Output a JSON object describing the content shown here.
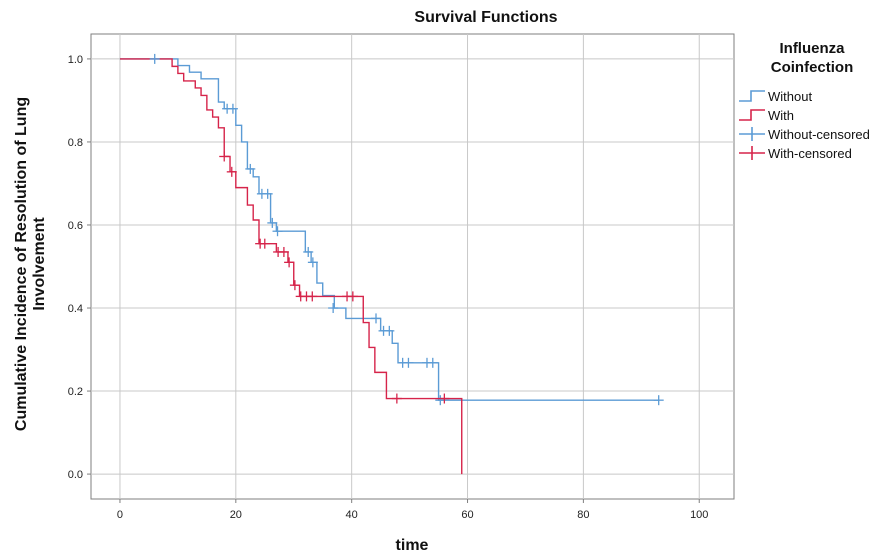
{
  "chart_data": {
    "type": "line",
    "title": "Survival Functions",
    "xlabel": "time",
    "ylabel_lines": [
      "Cumulative Incidence of Resolution of Lung",
      "Involvement"
    ],
    "xlim": [
      -5,
      106
    ],
    "ylim": [
      -0.06,
      1.06
    ],
    "xticks": [
      0,
      20,
      40,
      60,
      80,
      100
    ],
    "yticks": [
      0.0,
      0.2,
      0.4,
      0.6,
      0.8,
      1.0
    ],
    "ytick_labels": [
      "0.0",
      "0.2",
      "0.4",
      "0.6",
      "0.8",
      "1.0"
    ],
    "grid": true,
    "legend": {
      "title_lines": [
        "Influenza",
        "Coinfection"
      ],
      "position": "right",
      "entries": [
        {
          "label": "Without",
          "kind": "line",
          "color": "#5b9bd5"
        },
        {
          "label": "With",
          "kind": "line",
          "color": "#d6244a"
        },
        {
          "label": "Without-censored",
          "kind": "censor",
          "color": "#5b9bd5"
        },
        {
          "label": "With-censored",
          "kind": "censor",
          "color": "#d6244a"
        }
      ]
    },
    "series": [
      {
        "name": "Without",
        "color": "#5b9bd5",
        "step_points": [
          [
            0,
            1.0
          ],
          [
            10,
            1.0
          ],
          [
            10,
            0.984
          ],
          [
            12,
            0.984
          ],
          [
            12,
            0.968
          ],
          [
            14,
            0.968
          ],
          [
            14,
            0.952
          ],
          [
            17,
            0.952
          ],
          [
            17,
            0.896
          ],
          [
            18,
            0.896
          ],
          [
            18,
            0.88
          ],
          [
            20,
            0.88
          ],
          [
            20,
            0.84
          ],
          [
            21,
            0.84
          ],
          [
            21,
            0.8
          ],
          [
            22,
            0.8
          ],
          [
            22,
            0.735
          ],
          [
            23,
            0.735
          ],
          [
            23,
            0.716
          ],
          [
            24,
            0.716
          ],
          [
            24,
            0.675
          ],
          [
            26,
            0.675
          ],
          [
            26,
            0.605
          ],
          [
            27,
            0.605
          ],
          [
            27,
            0.585
          ],
          [
            32,
            0.585
          ],
          [
            32,
            0.535
          ],
          [
            33,
            0.535
          ],
          [
            33,
            0.51
          ],
          [
            34,
            0.51
          ],
          [
            34,
            0.46
          ],
          [
            35,
            0.46
          ],
          [
            35,
            0.43
          ],
          [
            37,
            0.43
          ],
          [
            37,
            0.4
          ],
          [
            39,
            0.4
          ],
          [
            39,
            0.375
          ],
          [
            45,
            0.375
          ],
          [
            45,
            0.345
          ],
          [
            47,
            0.345
          ],
          [
            47,
            0.315
          ],
          [
            48,
            0.315
          ],
          [
            48,
            0.268
          ],
          [
            55,
            0.268
          ],
          [
            55,
            0.178
          ],
          [
            93,
            0.178
          ]
        ],
        "censored": [
          [
            6,
            1.0
          ],
          [
            18.5,
            0.88
          ],
          [
            19.5,
            0.88
          ],
          [
            22.5,
            0.735
          ],
          [
            24.5,
            0.675
          ],
          [
            25.5,
            0.675
          ],
          [
            26.3,
            0.605
          ],
          [
            27.2,
            0.585
          ],
          [
            32.5,
            0.535
          ],
          [
            33.3,
            0.51
          ],
          [
            36.8,
            0.4
          ],
          [
            44.2,
            0.375
          ],
          [
            45.5,
            0.345
          ],
          [
            46.5,
            0.345
          ],
          [
            48.8,
            0.268
          ],
          [
            49.8,
            0.268
          ],
          [
            53,
            0.268
          ],
          [
            54,
            0.268
          ],
          [
            55.3,
            0.178
          ],
          [
            93,
            0.178
          ]
        ]
      },
      {
        "name": "With",
        "color": "#d6244a",
        "step_points": [
          [
            0,
            1.0
          ],
          [
            9,
            1.0
          ],
          [
            9,
            0.982
          ],
          [
            10,
            0.982
          ],
          [
            10,
            0.965
          ],
          [
            11,
            0.965
          ],
          [
            11,
            0.947
          ],
          [
            13,
            0.947
          ],
          [
            13,
            0.93
          ],
          [
            14,
            0.93
          ],
          [
            14,
            0.912
          ],
          [
            15,
            0.912
          ],
          [
            15,
            0.877
          ],
          [
            16,
            0.877
          ],
          [
            16,
            0.86
          ],
          [
            17,
            0.86
          ],
          [
            17,
            0.834
          ],
          [
            18,
            0.834
          ],
          [
            18,
            0.765
          ],
          [
            19,
            0.765
          ],
          [
            19,
            0.728
          ],
          [
            20,
            0.728
          ],
          [
            20,
            0.69
          ],
          [
            22,
            0.69
          ],
          [
            22,
            0.648
          ],
          [
            23,
            0.648
          ],
          [
            23,
            0.612
          ],
          [
            24,
            0.612
          ],
          [
            24,
            0.555
          ],
          [
            27,
            0.555
          ],
          [
            27,
            0.535
          ],
          [
            29,
            0.535
          ],
          [
            29,
            0.51
          ],
          [
            30,
            0.51
          ],
          [
            30,
            0.455
          ],
          [
            31,
            0.455
          ],
          [
            31,
            0.428
          ],
          [
            42,
            0.428
          ],
          [
            42,
            0.365
          ],
          [
            43,
            0.365
          ],
          [
            43,
            0.305
          ],
          [
            44,
            0.305
          ],
          [
            44,
            0.245
          ],
          [
            46,
            0.245
          ],
          [
            46,
            0.182
          ],
          [
            59,
            0.182
          ],
          [
            59,
            0.0
          ]
        ],
        "censored": [
          [
            18,
            0.765
          ],
          [
            19.3,
            0.728
          ],
          [
            24.2,
            0.555
          ],
          [
            25,
            0.555
          ],
          [
            27.3,
            0.535
          ],
          [
            28.3,
            0.535
          ],
          [
            29.2,
            0.51
          ],
          [
            30.2,
            0.455
          ],
          [
            31.2,
            0.428
          ],
          [
            32.2,
            0.428
          ],
          [
            33.2,
            0.428
          ],
          [
            39.2,
            0.428
          ],
          [
            40.2,
            0.428
          ],
          [
            47.8,
            0.182
          ],
          [
            56,
            0.182
          ]
        ]
      }
    ]
  }
}
